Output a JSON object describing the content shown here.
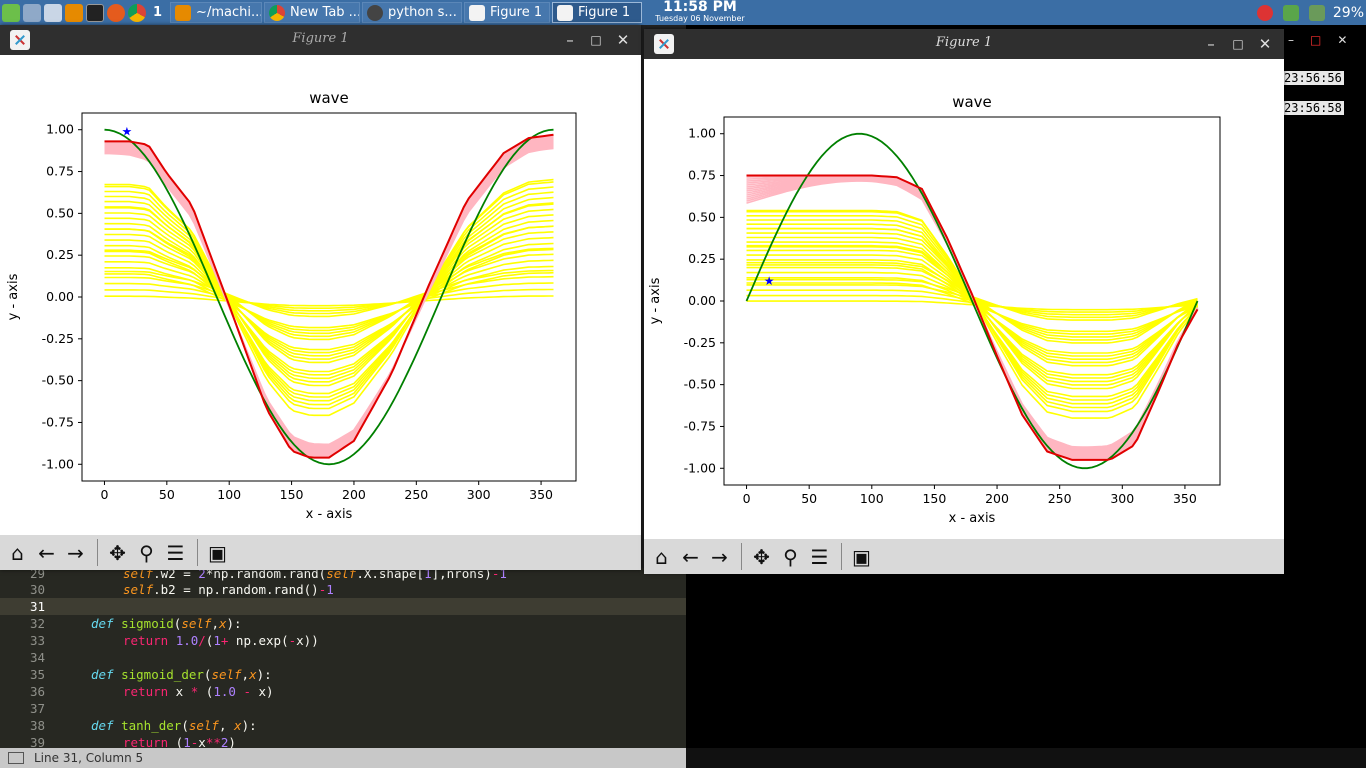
{
  "taskbar": {
    "workspace": "1",
    "buttons": [
      "~/machi...",
      "New Tab ...",
      "python s...",
      "Figure 1",
      "Figure 1"
    ],
    "clock_time": "11:58 PM",
    "clock_date": "Tuesday 06 November",
    "battery": "29%"
  },
  "terminal": {
    "timestamps": [
      "23:56:56",
      "23:56:58"
    ]
  },
  "editor": {
    "lines": [
      {
        "n": "29",
        "code": "self.w2 = 2*np.random.rand(self.X.shape[1],nrons)-1"
      },
      {
        "n": "30",
        "code": "self.b2 = np.random.rand()-1"
      },
      {
        "n": "31",
        "code": ""
      },
      {
        "n": "32",
        "code": "def sigmoid(self,x):"
      },
      {
        "n": "33",
        "code": "return 1.0/(1+ np.exp(-x))"
      },
      {
        "n": "34",
        "code": ""
      },
      {
        "n": "35",
        "code": "def sigmoid_der(self,x):"
      },
      {
        "n": "36",
        "code": "return x * (1.0 - x)"
      },
      {
        "n": "37",
        "code": ""
      },
      {
        "n": "38",
        "code": "def tanh_der(self, x):"
      },
      {
        "n": "39",
        "code": "return (1-x**2)"
      }
    ],
    "status": "Line 31, Column 5"
  },
  "figures": [
    {
      "window_title": "Figure 1"
    },
    {
      "window_title": "Figure 1"
    }
  ],
  "chart_data": [
    {
      "type": "line",
      "title": "wave",
      "xlabel": "x - axis",
      "ylabel": "y - axis",
      "xlim": [
        -18,
        378
      ],
      "ylim": [
        -1.1,
        1.1
      ],
      "xticks": [
        0,
        50,
        100,
        150,
        200,
        250,
        300,
        350
      ],
      "yticks": [
        -1.0,
        -0.75,
        -0.5,
        -0.25,
        0.0,
        0.25,
        0.5,
        0.75,
        1.0
      ],
      "target": {
        "color": "#008000",
        "function": "cos",
        "x_range": [
          0,
          360
        ]
      },
      "marker": {
        "x": 18,
        "y": 0.99,
        "symbol": "star",
        "color": "#0000ff"
      },
      "colors": {
        "target": "#008000",
        "final": "#e00000",
        "late_iterations": "#ffb6c1",
        "early_iterations": "#ffff00"
      },
      "final_fit": {
        "x": [
          0,
          20,
          35,
          50,
          70,
          100,
          130,
          150,
          165,
          180,
          200,
          230,
          260,
          290,
          320,
          340,
          360
        ],
        "y": [
          0.93,
          0.93,
          0.91,
          0.74,
          0.55,
          -0.05,
          -0.67,
          -0.92,
          -0.96,
          -0.96,
          -0.86,
          -0.46,
          0.07,
          0.57,
          0.86,
          0.95,
          0.97
        ]
      }
    },
    {
      "type": "line",
      "title": "wave",
      "xlabel": "x - axis",
      "ylabel": "y - axis",
      "xlim": [
        -18,
        378
      ],
      "ylim": [
        -1.1,
        1.1
      ],
      "xticks": [
        0,
        50,
        100,
        150,
        200,
        250,
        300,
        350
      ],
      "yticks": [
        -1.0,
        -0.75,
        -0.5,
        -0.25,
        0.0,
        0.25,
        0.5,
        0.75,
        1.0
      ],
      "target": {
        "color": "#008000",
        "function": "sin",
        "x_range": [
          0,
          360
        ]
      },
      "marker": {
        "x": 18,
        "y": 0.12,
        "symbol": "star",
        "color": "#0000ff"
      },
      "colors": {
        "target": "#008000",
        "final": "#e00000",
        "late_iterations": "#ffb6c1",
        "early_iterations": "#ffff00"
      },
      "final_fit": {
        "x": [
          0,
          50,
          100,
          120,
          140,
          160,
          180,
          200,
          220,
          240,
          260,
          290,
          310,
          330,
          345,
          360
        ],
        "y": [
          0.75,
          0.75,
          0.75,
          0.74,
          0.67,
          0.38,
          0.04,
          -0.33,
          -0.68,
          -0.9,
          -0.95,
          -0.95,
          -0.86,
          -0.52,
          -0.25,
          -0.05
        ]
      }
    }
  ]
}
